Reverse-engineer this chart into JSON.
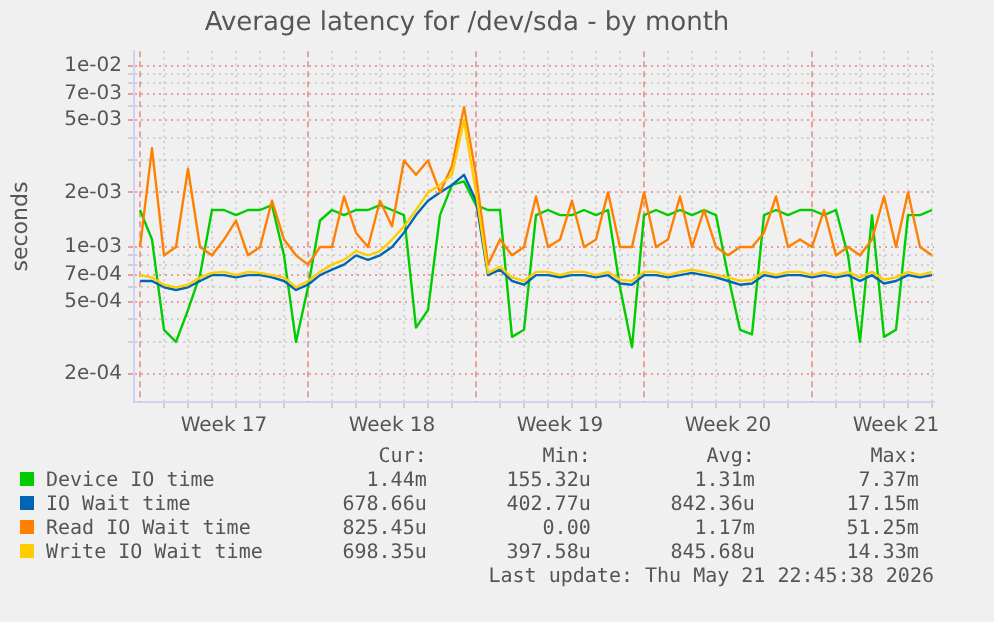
{
  "chart_data": {
    "type": "line",
    "title": "Average latency for /dev/sda - by month",
    "ylabel": "seconds",
    "log": "y",
    "grid": true,
    "legend": "bottom",
    "marker": "none",
    "line_style": "solid",
    "xlim": [
      "2026-04-19T18:00",
      "2026-05-23T02:00"
    ],
    "xticks": [
      {
        "value": "2026-04-21",
        "label": null
      },
      {
        "value": "2026-04-22",
        "label": null
      },
      {
        "value": "2026-04-23",
        "label": null
      },
      {
        "value": "2026-04-23T12:00",
        "label": "Week 17"
      },
      {
        "value": "2026-04-24",
        "label": null
      },
      {
        "value": "2026-04-25",
        "label": null
      },
      {
        "value": "2026-04-26",
        "label": null
      },
      {
        "value": "2026-04-28",
        "label": null
      },
      {
        "value": "2026-04-29",
        "label": null
      },
      {
        "value": "2026-04-30",
        "label": null
      },
      {
        "value": "2026-04-30T12:00",
        "label": "Week 18"
      },
      {
        "value": "2026-05-01",
        "label": null
      },
      {
        "value": "2026-05-02",
        "label": null
      },
      {
        "value": "2026-05-03",
        "label": null
      },
      {
        "value": "2026-05-05",
        "label": null
      },
      {
        "value": "2026-05-06",
        "label": null
      },
      {
        "value": "2026-05-07",
        "label": null
      },
      {
        "value": "2026-05-07T12:00",
        "label": "Week 19"
      },
      {
        "value": "2026-05-08",
        "label": null
      },
      {
        "value": "2026-05-09",
        "label": null
      },
      {
        "value": "2026-05-10",
        "label": null
      },
      {
        "value": "2026-05-12",
        "label": null
      },
      {
        "value": "2026-05-13",
        "label": null
      },
      {
        "value": "2026-05-14",
        "label": null
      },
      {
        "value": "2026-05-14T12:00",
        "label": "Week 20"
      },
      {
        "value": "2026-05-15",
        "label": null
      },
      {
        "value": "2026-05-16",
        "label": null
      },
      {
        "value": "2026-05-17",
        "label": null
      },
      {
        "value": "2026-05-19",
        "label": null
      },
      {
        "value": "2026-05-20",
        "label": null
      },
      {
        "value": "2026-05-21",
        "label": null
      },
      {
        "value": "2026-05-21T12:00",
        "label": "Week 21"
      },
      {
        "value": "2026-05-22",
        "label": null
      },
      {
        "value": "2026-05-23",
        "label": null
      }
    ],
    "ylim": [
      0.00014,
      0.012
    ],
    "yticks": [
      {
        "value": 0.01,
        "label": "1e-02"
      },
      {
        "value": 0.009,
        "label": null
      },
      {
        "value": 0.008,
        "label": null
      },
      {
        "value": 0.007,
        "label": "7e-03"
      },
      {
        "value": 0.006,
        "label": null
      },
      {
        "value": 0.005,
        "label": "5e-03"
      },
      {
        "value": 0.004,
        "label": null
      },
      {
        "value": 0.003,
        "label": null
      },
      {
        "value": 0.002,
        "label": "2e-03"
      },
      {
        "value": 0.001,
        "label": "1e-03"
      },
      {
        "value": 0.0009,
        "label": null
      },
      {
        "value": 0.0008,
        "label": null
      },
      {
        "value": 0.0007,
        "label": "7e-04"
      },
      {
        "value": 0.0006,
        "label": null
      },
      {
        "value": 0.0005,
        "label": "5e-04"
      },
      {
        "value": 0.0004,
        "label": null
      },
      {
        "value": 0.0003,
        "label": null
      },
      {
        "value": 0.0002,
        "label": "2e-04"
      }
    ],
    "ref_lines": [
      {
        "axis": "x",
        "value": "2026-04-20",
        "color": "#e8a0a0",
        "line_style": "dotted"
      },
      {
        "axis": "x",
        "value": "2026-04-27",
        "color": "#e8a0a0",
        "line_style": "dotted"
      },
      {
        "axis": "x",
        "value": "2026-05-04",
        "color": "#e8a0a0",
        "line_style": "dotted"
      },
      {
        "axis": "x",
        "value": "2026-05-11",
        "color": "#e8a0a0",
        "line_style": "dotted"
      },
      {
        "axis": "x",
        "value": "2026-05-18",
        "color": "#e8a0a0",
        "line_style": "dotted"
      }
    ],
    "x": [
      "2026-04-20T00:00",
      "2026-04-20T12:00",
      "2026-04-21T00:00",
      "2026-04-21T12:00",
      "2026-04-22T00:00",
      "2026-04-22T12:00",
      "2026-04-23T00:00",
      "2026-04-23T12:00",
      "2026-04-24T00:00",
      "2026-04-24T12:00",
      "2026-04-25T00:00",
      "2026-04-25T12:00",
      "2026-04-26T00:00",
      "2026-04-26T12:00",
      "2026-04-27T00:00",
      "2026-04-27T12:00",
      "2026-04-28T00:00",
      "2026-04-28T12:00",
      "2026-04-29T00:00",
      "2026-04-29T12:00",
      "2026-04-30T00:00",
      "2026-04-30T12:00",
      "2026-05-01T00:00",
      "2026-05-01T12:00",
      "2026-05-02T00:00",
      "2026-05-02T12:00",
      "2026-05-03T00:00",
      "2026-05-03T12:00",
      "2026-05-04T00:00",
      "2026-05-04T12:00",
      "2026-05-05T00:00",
      "2026-05-05T12:00",
      "2026-05-06T00:00",
      "2026-05-06T12:00",
      "2026-05-07T00:00",
      "2026-05-07T12:00",
      "2026-05-08T00:00",
      "2026-05-08T12:00",
      "2026-05-09T00:00",
      "2026-05-09T12:00",
      "2026-05-10T00:00",
      "2026-05-10T12:00",
      "2026-05-11T00:00",
      "2026-05-11T12:00",
      "2026-05-12T00:00",
      "2026-05-12T12:00",
      "2026-05-13T00:00",
      "2026-05-13T12:00",
      "2026-05-14T00:00",
      "2026-05-14T12:00",
      "2026-05-15T00:00",
      "2026-05-15T12:00",
      "2026-05-16T00:00",
      "2026-05-16T12:00",
      "2026-05-17T00:00",
      "2026-05-17T12:00",
      "2026-05-18T00:00",
      "2026-05-18T12:00",
      "2026-05-19T00:00",
      "2026-05-19T12:00",
      "2026-05-20T00:00",
      "2026-05-20T12:00",
      "2026-05-21T00:00",
      "2026-05-21T12:00",
      "2026-05-22T00:00",
      "2026-05-22T12:00",
      "2026-05-23T00:00"
    ],
    "series": [
      {
        "name": "Device IO time",
        "color": "#00cc00",
        "values": [
          0.0016,
          0.0011,
          0.00035,
          0.0003,
          0.00045,
          0.0007,
          0.0016,
          0.0016,
          0.0015,
          0.0016,
          0.0016,
          0.0017,
          0.0009,
          0.0003,
          0.0006,
          0.0014,
          0.0016,
          0.0015,
          0.0016,
          0.0016,
          0.0017,
          0.0016,
          0.0015,
          0.00036,
          0.00045,
          0.0015,
          0.0022,
          0.0023,
          0.0017,
          0.0016,
          0.0016,
          0.00032,
          0.00035,
          0.0015,
          0.0016,
          0.0015,
          0.0015,
          0.0016,
          0.0015,
          0.0016,
          0.0006,
          0.00028,
          0.0015,
          0.0016,
          0.0015,
          0.0016,
          0.0015,
          0.0016,
          0.0015,
          0.0007,
          0.00035,
          0.00033,
          0.0015,
          0.0016,
          0.0015,
          0.0016,
          0.0016,
          0.0015,
          0.0016,
          0.0009,
          0.0003,
          0.0015,
          0.00032,
          0.00035,
          0.0015,
          0.0015,
          0.0016
        ]
      },
      {
        "name": "IO Wait time",
        "color": "#0066b3",
        "values": [
          0.00065,
          0.00065,
          0.0006,
          0.00058,
          0.0006,
          0.00065,
          0.0007,
          0.0007,
          0.00068,
          0.0007,
          0.0007,
          0.00068,
          0.00065,
          0.00058,
          0.00062,
          0.0007,
          0.00075,
          0.0008,
          0.0009,
          0.00085,
          0.0009,
          0.001,
          0.0012,
          0.0015,
          0.0018,
          0.002,
          0.0022,
          0.0025,
          0.0018,
          0.0007,
          0.00075,
          0.00065,
          0.00062,
          0.0007,
          0.0007,
          0.00068,
          0.0007,
          0.0007,
          0.00068,
          0.0007,
          0.00063,
          0.00062,
          0.0007,
          0.0007,
          0.00068,
          0.0007,
          0.00072,
          0.0007,
          0.00068,
          0.00065,
          0.00062,
          0.00063,
          0.0007,
          0.00068,
          0.0007,
          0.0007,
          0.00068,
          0.0007,
          0.00068,
          0.0007,
          0.00065,
          0.0007,
          0.00063,
          0.00065,
          0.0007,
          0.00068,
          0.0007
        ]
      },
      {
        "name": "Read IO Wait time",
        "color": "#ff8000",
        "values": [
          0.001,
          0.0035,
          0.0009,
          0.001,
          0.0027,
          0.001,
          0.0009,
          0.0011,
          0.0014,
          0.0009,
          0.001,
          0.0018,
          0.0011,
          0.0009,
          0.0008,
          0.001,
          0.001,
          0.0019,
          0.0012,
          0.001,
          0.0018,
          0.0013,
          0.003,
          0.0025,
          0.003,
          0.002,
          0.0028,
          0.0059,
          0.0025,
          0.0008,
          0.0011,
          0.0009,
          0.001,
          0.0019,
          0.001,
          0.0011,
          0.0018,
          0.001,
          0.0011,
          0.002,
          0.001,
          0.001,
          0.002,
          0.001,
          0.0011,
          0.0019,
          0.001,
          0.0016,
          0.001,
          0.0009,
          0.001,
          0.001,
          0.0012,
          0.0019,
          0.001,
          0.0011,
          0.001,
          0.0016,
          0.0009,
          0.001,
          0.0009,
          0.0011,
          0.0019,
          0.001,
          0.002,
          0.001,
          0.0009
        ]
      },
      {
        "name": "Write IO Wait time",
        "color": "#ffcc00",
        "values": [
          0.0007,
          0.00068,
          0.00062,
          0.0006,
          0.00062,
          0.00068,
          0.00072,
          0.00073,
          0.0007,
          0.00073,
          0.00072,
          0.0007,
          0.00068,
          0.0006,
          0.00065,
          0.00073,
          0.0008,
          0.00085,
          0.00095,
          0.0009,
          0.00095,
          0.0011,
          0.0013,
          0.0016,
          0.002,
          0.0022,
          0.0025,
          0.005,
          0.002,
          0.00072,
          0.00078,
          0.00068,
          0.00065,
          0.00073,
          0.00073,
          0.0007,
          0.00073,
          0.00073,
          0.0007,
          0.00073,
          0.00066,
          0.00065,
          0.00073,
          0.00073,
          0.0007,
          0.00073,
          0.00075,
          0.00073,
          0.0007,
          0.00068,
          0.00065,
          0.00066,
          0.00073,
          0.0007,
          0.00073,
          0.00073,
          0.0007,
          0.00073,
          0.0007,
          0.00073,
          0.00068,
          0.00073,
          0.00066,
          0.00068,
          0.00073,
          0.0007,
          0.00073
        ]
      }
    ],
    "annotations": [
      "Cur:",
      "Min:",
      "Avg:",
      "Max:",
      "1.44m",
      "155.32u",
      "1.31m",
      "7.37m",
      "678.66u",
      "402.77u",
      "842.36u",
      "17.15m",
      "825.45u",
      "0.00",
      "1.17m",
      "51.25m",
      "698.35u",
      "397.58u",
      "845.68u",
      "14.33m",
      "Last update: Thu May 21 22:45:38 2026"
    ]
  }
}
